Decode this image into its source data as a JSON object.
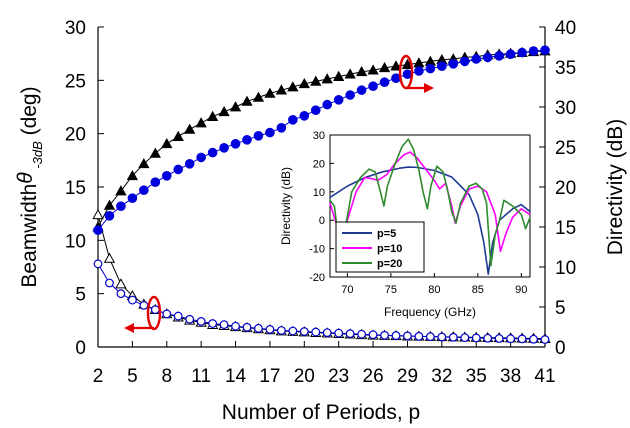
{
  "chart_data": [
    {
      "type": "scatter",
      "title": "",
      "xlabel": "Number of Periods, p",
      "ylabel_left": "Beamwidth θ -3dB (deg)",
      "ylabel_right": "Directivity (dB)",
      "xlim": [
        2,
        41
      ],
      "ylim_left": [
        0,
        30
      ],
      "ylim_right": [
        0,
        40
      ],
      "xticks": [
        2,
        5,
        8,
        11,
        14,
        17,
        20,
        23,
        26,
        29,
        32,
        35,
        38,
        41
      ],
      "yticks_left": [
        0,
        5,
        10,
        15,
        20,
        25,
        30
      ],
      "yticks_right": [
        0,
        5,
        10,
        15,
        20,
        25,
        30,
        35,
        40
      ],
      "x": [
        2,
        3,
        4,
        5,
        6,
        7,
        8,
        9,
        10,
        11,
        12,
        13,
        14,
        15,
        16,
        17,
        18,
        19,
        20,
        21,
        22,
        23,
        24,
        25,
        26,
        27,
        28,
        29,
        30,
        31,
        32,
        33,
        34,
        35,
        36,
        37,
        38,
        39,
        40,
        41
      ],
      "series": [
        {
          "axis": "left",
          "marker": "triangle-open",
          "color": "#000000",
          "values": [
            12.4,
            8.3,
            5.9,
            4.8,
            4.0,
            3.5,
            3.1,
            2.8,
            2.5,
            2.3,
            2.1,
            2.0,
            1.9,
            1.8,
            1.7,
            1.6,
            1.5,
            1.45,
            1.4,
            1.35,
            1.3,
            1.25,
            1.2,
            1.15,
            1.1,
            1.08,
            1.05,
            1.02,
            1.0,
            0.98,
            0.96,
            0.94,
            0.92,
            0.9,
            0.88,
            0.86,
            0.84,
            0.82,
            0.8,
            0.78
          ]
        },
        {
          "axis": "left",
          "marker": "circle-open",
          "color": "#0000cc",
          "values": [
            7.8,
            6.0,
            5.0,
            4.4,
            3.9,
            3.5,
            3.1,
            2.9,
            2.6,
            2.4,
            2.2,
            2.1,
            1.95,
            1.85,
            1.75,
            1.65,
            1.55,
            1.5,
            1.45,
            1.4,
            1.35,
            1.3,
            1.25,
            1.2,
            1.15,
            1.1,
            1.07,
            1.04,
            1.0,
            0.97,
            0.94,
            0.91,
            0.88,
            0.85,
            0.82,
            0.8,
            0.78,
            0.76,
            0.73,
            0.7
          ]
        },
        {
          "axis": "right",
          "marker": "triangle-filled",
          "color": "#000000",
          "values": [
            15.0,
            17.7,
            19.5,
            21.4,
            22.9,
            24.2,
            25.4,
            26.3,
            27.2,
            28.0,
            28.8,
            29.4,
            30.0,
            30.7,
            31.2,
            31.7,
            32.1,
            32.5,
            32.9,
            33.2,
            33.5,
            33.8,
            34.1,
            34.4,
            34.6,
            34.9,
            35.1,
            35.3,
            35.5,
            35.7,
            35.9,
            36.0,
            36.2,
            36.3,
            36.5,
            36.6,
            36.7,
            36.8,
            36.9,
            37.0
          ]
        },
        {
          "axis": "right",
          "marker": "circle-filled",
          "color": "#0000dd",
          "values": [
            14.6,
            16.4,
            17.6,
            18.6,
            19.6,
            20.6,
            21.4,
            22.2,
            22.9,
            23.7,
            24.3,
            24.9,
            25.4,
            25.9,
            26.4,
            26.8,
            27.4,
            28.4,
            28.9,
            29.6,
            30.3,
            30.9,
            31.5,
            32.1,
            32.6,
            33.1,
            33.6,
            34.1,
            34.5,
            34.8,
            35.1,
            35.4,
            35.7,
            36.0,
            36.2,
            36.4,
            36.6,
            36.8,
            37.0,
            37.1
          ]
        }
      ]
    },
    {
      "type": "line",
      "title": "",
      "xlabel": "Frequency (GHz)",
      "ylabel": "Directivity (dB)",
      "xlim": [
        68,
        91
      ],
      "ylim": [
        -20,
        30
      ],
      "xticks": [
        70,
        75,
        80,
        85,
        90
      ],
      "yticks": [
        -20,
        -10,
        0,
        10,
        20,
        30
      ],
      "legend": "bottom-left",
      "series": [
        {
          "name": "p=5",
          "color": "#1f3a93",
          "points": [
            [
              68,
              8
            ],
            [
              70,
              12
            ],
            [
              72,
              15
            ],
            [
              74,
              17
            ],
            [
              76,
              18.3
            ],
            [
              77,
              18.7
            ],
            [
              78,
              18.6
            ],
            [
              80,
              17.5
            ],
            [
              82,
              15.2
            ],
            [
              84,
              9
            ],
            [
              85,
              2
            ],
            [
              85.7,
              -8
            ],
            [
              86.2,
              -19
            ],
            [
              86.7,
              -8
            ],
            [
              87.5,
              0
            ],
            [
              89,
              4
            ],
            [
              90,
              5.5
            ],
            [
              91,
              3
            ]
          ]
        },
        {
          "name": "p=10",
          "color": "#ff00ff",
          "points": [
            [
              68,
              6
            ],
            [
              68.8,
              -2
            ],
            [
              69.3,
              -10
            ],
            [
              69.8,
              -2
            ],
            [
              71,
              10
            ],
            [
              72,
              15
            ],
            [
              73,
              14.5
            ],
            [
              73.5,
              14
            ],
            [
              74.5,
              16
            ],
            [
              75.5,
              20
            ],
            [
              76.5,
              23
            ],
            [
              77.2,
              24
            ],
            [
              78,
              22
            ],
            [
              79,
              18
            ],
            [
              80,
              14
            ],
            [
              80.6,
              11
            ],
            [
              81.3,
              13
            ],
            [
              82,
              5
            ],
            [
              82.4,
              -1
            ],
            [
              83,
              5
            ],
            [
              84,
              11
            ],
            [
              85,
              12
            ],
            [
              86,
              10
            ],
            [
              87,
              2
            ],
            [
              87.6,
              -11
            ],
            [
              88.2,
              -5
            ],
            [
              89,
              1
            ],
            [
              90,
              4
            ],
            [
              91,
              2
            ]
          ]
        },
        {
          "name": "p=20",
          "color": "#2e8b2e",
          "points": [
            [
              68,
              7
            ],
            [
              68.5,
              5
            ],
            [
              69.2,
              -12
            ],
            [
              69.8,
              -2
            ],
            [
              70.5,
              10
            ],
            [
              71.5,
              15
            ],
            [
              72.5,
              18
            ],
            [
              73.2,
              17
            ],
            [
              73.8,
              10
            ],
            [
              74.2,
              5
            ],
            [
              74.6,
              12
            ],
            [
              75.5,
              20
            ],
            [
              76.3,
              26
            ],
            [
              77,
              28.5
            ],
            [
              77.6,
              25
            ],
            [
              78.2,
              18
            ],
            [
              78.7,
              10
            ],
            [
              79.2,
              4
            ],
            [
              79.6,
              12
            ],
            [
              80.3,
              19
            ],
            [
              81,
              17
            ],
            [
              81.5,
              11
            ],
            [
              82,
              3
            ],
            [
              82.5,
              -1
            ],
            [
              83,
              6
            ],
            [
              84,
              12
            ],
            [
              84.8,
              13
            ],
            [
              85.5,
              11
            ],
            [
              86,
              6
            ],
            [
              86.5,
              -16
            ],
            [
              87,
              -5
            ],
            [
              87.5,
              0
            ],
            [
              88,
              7
            ],
            [
              89,
              5
            ],
            [
              90,
              2
            ],
            [
              90.5,
              -3
            ],
            [
              91,
              1
            ]
          ]
        }
      ]
    }
  ]
}
